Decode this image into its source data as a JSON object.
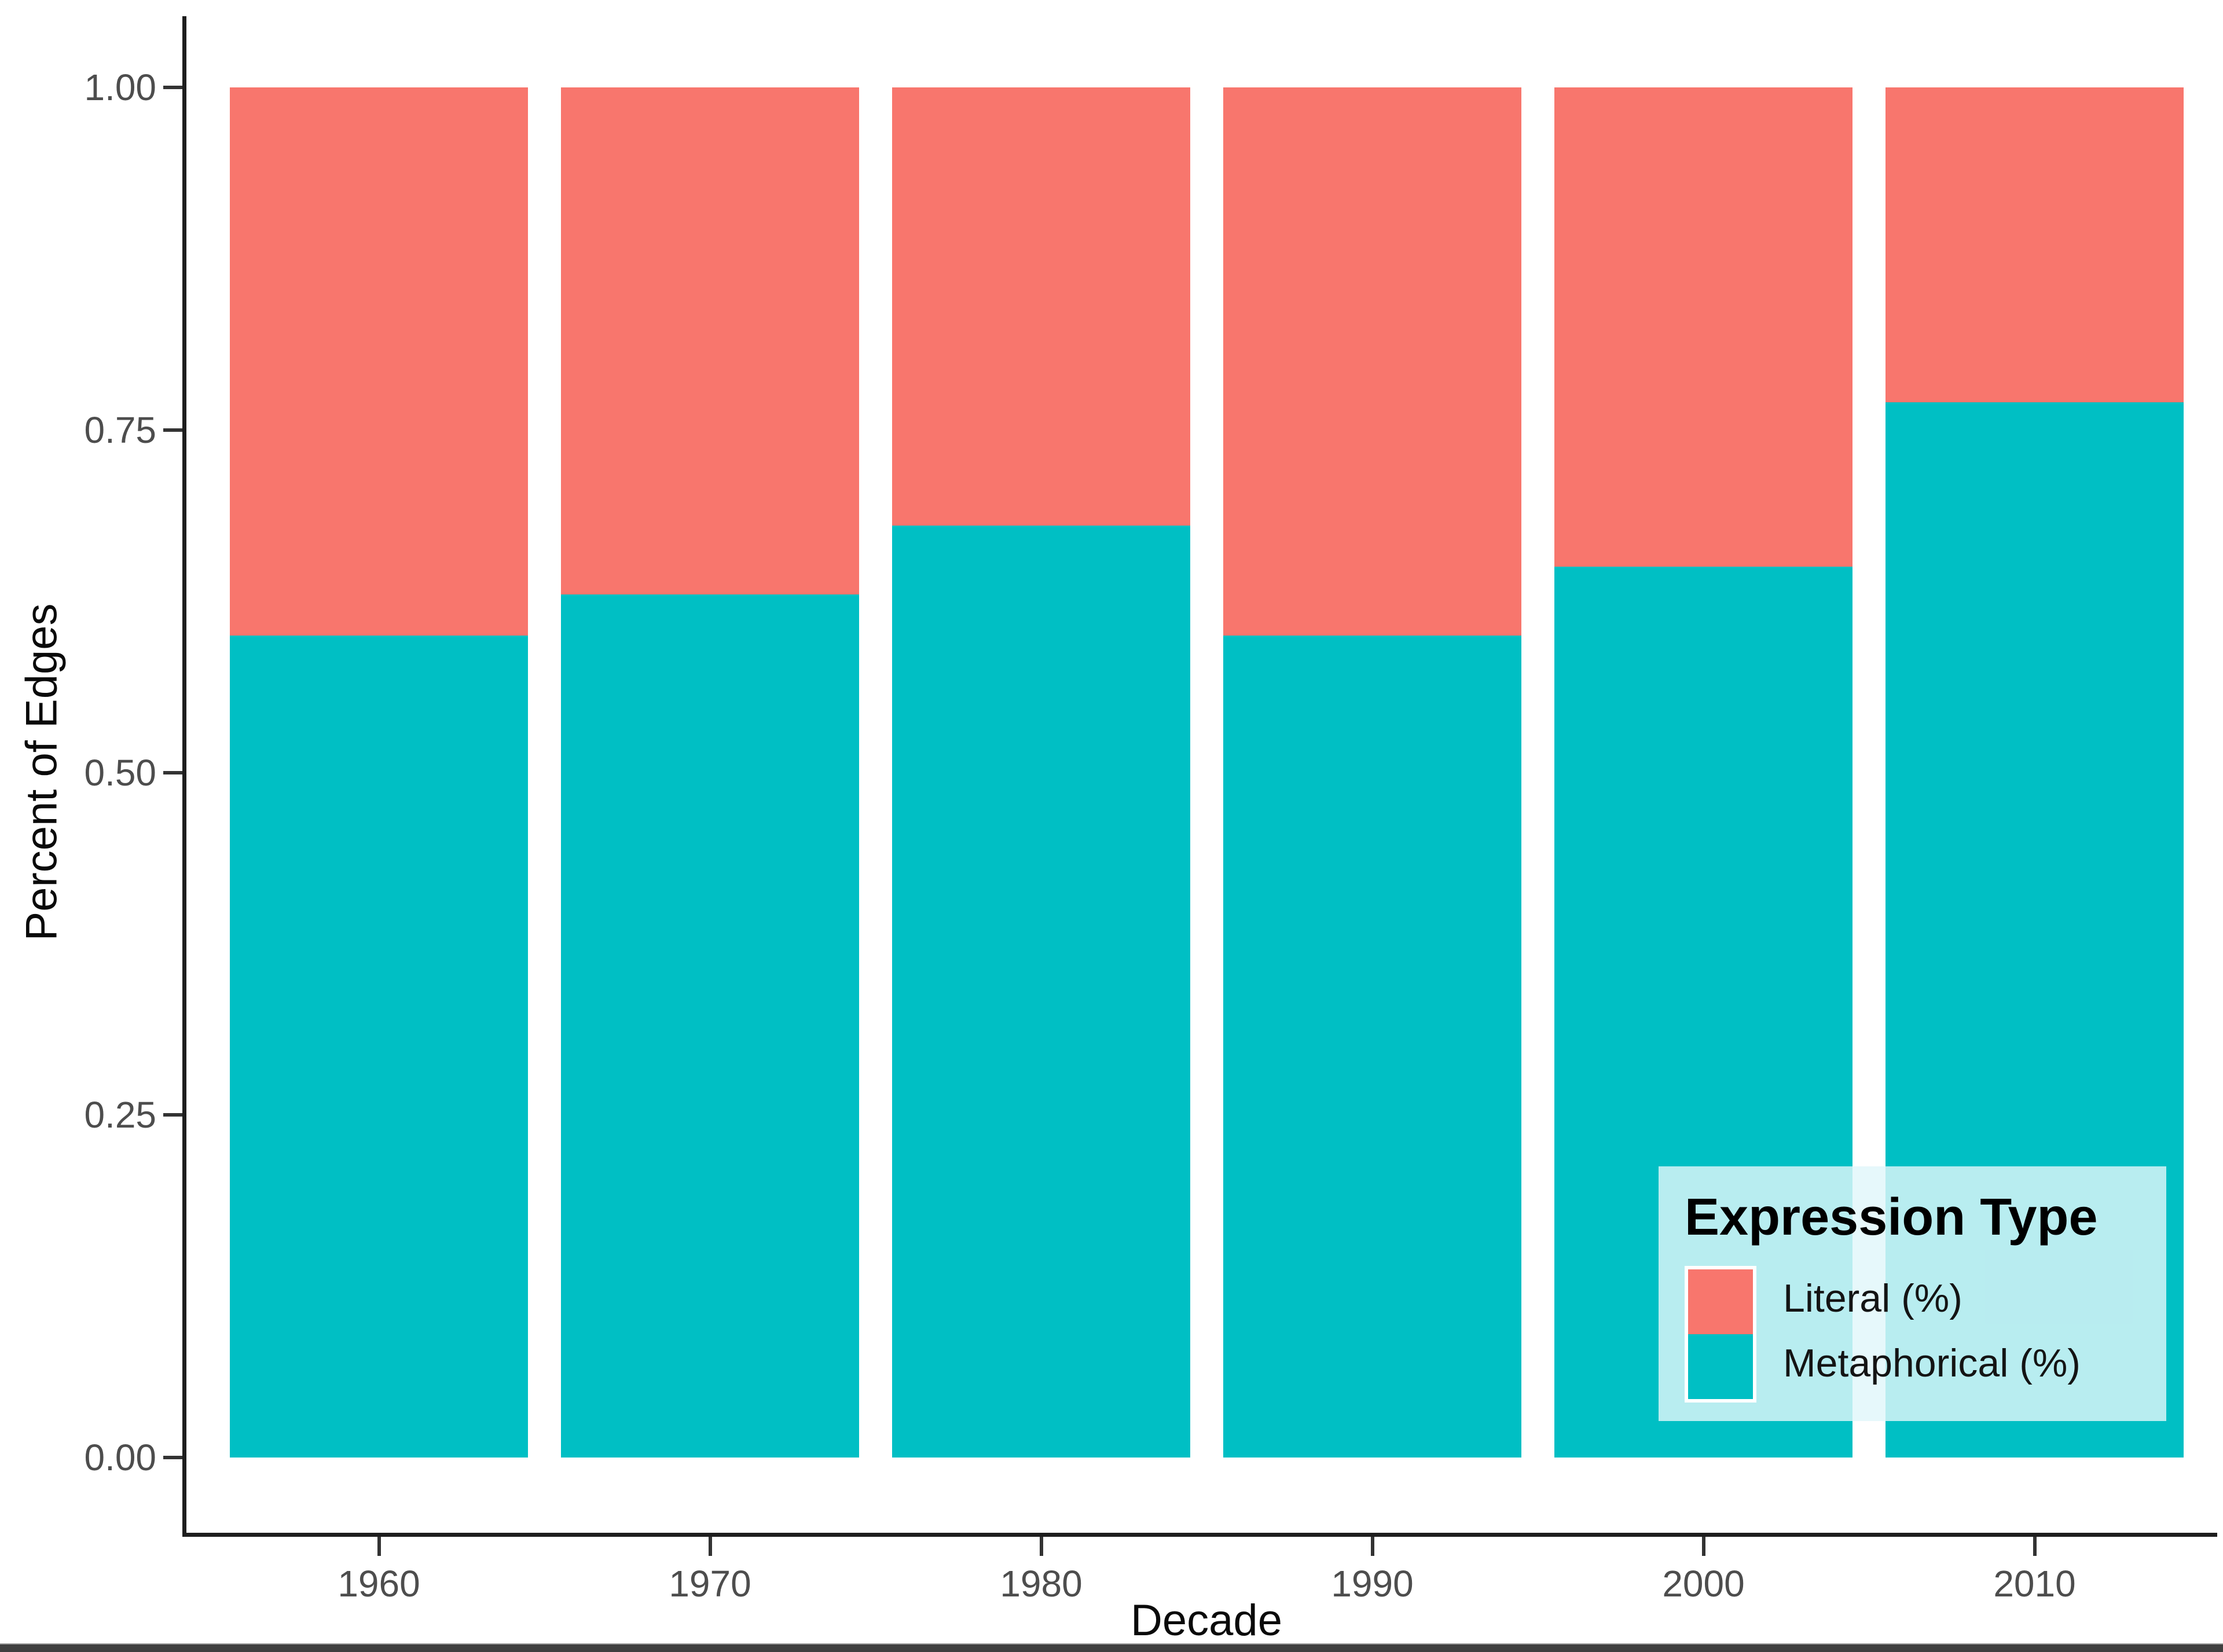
{
  "chart_data": {
    "type": "bar",
    "stacked": true,
    "title": "",
    "xlabel": "Decade",
    "ylabel": "Percent of Edges",
    "categories": [
      "1960",
      "1970",
      "1980",
      "1990",
      "2000",
      "2010"
    ],
    "series": [
      {
        "name": "Metaphorical (%)",
        "color": "#00BFC4",
        "values": [
          0.6,
          0.63,
          0.68,
          0.6,
          0.65,
          0.77
        ]
      },
      {
        "name": "Literal (%)",
        "color": "#F8766D",
        "values": [
          0.4,
          0.37,
          0.32,
          0.4,
          0.35,
          0.23
        ]
      }
    ],
    "ylim": [
      0,
      1
    ],
    "y_ticks": [
      {
        "value": 0.0,
        "label": "0.00"
      },
      {
        "value": 0.25,
        "label": "0.25"
      },
      {
        "value": 0.5,
        "label": "0.50"
      },
      {
        "value": 0.75,
        "label": "0.75"
      },
      {
        "value": 1.0,
        "label": "1.00"
      }
    ],
    "grid": false,
    "legend": {
      "title": "Expression Type",
      "position": "bottom-right",
      "entries": [
        {
          "label": "Literal (%)",
          "color": "#F8766D"
        },
        {
          "label": "Metaphorical (%)",
          "color": "#00BFC4"
        }
      ]
    }
  },
  "colors": {
    "literal": "#F8766D",
    "metaphorical": "#00BFC4",
    "axis_line": "#1d1d1d",
    "tick_text": "#4d4d4d",
    "legend_background": "rgba(224,246,250,0.82)",
    "bottom_bar": "#3f3f3f"
  }
}
